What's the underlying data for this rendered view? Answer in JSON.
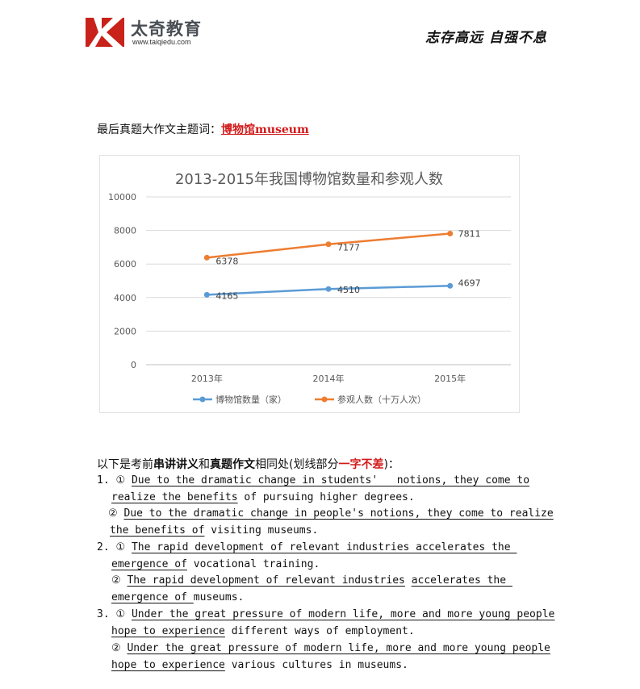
{
  "header": {
    "brand": "太奇教育",
    "url": "www.taiqiedu.com",
    "slogan": "志存高远 自强不息"
  },
  "topic": {
    "label": "最后真题大作文主题词：",
    "keyword": "博物馆museum"
  },
  "chart_data": {
    "type": "line",
    "title": "2013-2015年我国博物馆数量和参观人数",
    "categories": [
      "2013年",
      "2014年",
      "2015年"
    ],
    "ylim": [
      0,
      10000
    ],
    "yticks": [
      "0",
      "2000",
      "4000",
      "6000",
      "8000",
      "10000"
    ],
    "grid": true,
    "legend_position": "bottom",
    "series": [
      {
        "name": "博物馆数量（家）",
        "values": [
          4165,
          4510,
          4697
        ],
        "color": "#5B9BD5"
      },
      {
        "name": "参观人数（十万人次）",
        "values": [
          6378,
          7177,
          7811
        ],
        "color": "#ED7D31"
      }
    ]
  },
  "intro": {
    "p1": "以下是考前",
    "b1": "串讲讲义",
    "p2": "和",
    "b2": "真题作文",
    "p3": "相同处(划线部分",
    "red": "一字不差",
    "p4": ")："
  },
  "lines": [
    {
      "x": 120,
      "segs": [
        {
          "t": "1. ① ",
          "u": false
        },
        {
          "t": "Due to the dramatic change in students'   notions, they come to",
          "u": true
        }
      ]
    },
    {
      "x": 138,
      "segs": [
        {
          "t": "realize the benefits",
          "u": true
        },
        {
          "t": " of pursuing higher degrees.",
          "u": false
        }
      ]
    },
    {
      "x": 134,
      "segs": [
        {
          "t": "② ",
          "u": false
        },
        {
          "t": "Due to the dramatic change in people's notions, they come to realize",
          "u": true
        }
      ]
    },
    {
      "x": 136,
      "segs": [
        {
          "t": "the benefits of",
          "u": true
        },
        {
          "t": " visiting museums.",
          "u": false
        }
      ]
    },
    {
      "x": 120,
      "segs": [
        {
          "t": "2. ① ",
          "u": false
        },
        {
          "t": "The rapid development of relevant industries accelerates the ",
          "u": true
        }
      ]
    },
    {
      "x": 138,
      "segs": [
        {
          "t": "emergence of",
          "u": true
        },
        {
          "t": " vocational training.",
          "u": false
        }
      ]
    },
    {
      "x": 138,
      "segs": [
        {
          "t": "② ",
          "u": false
        },
        {
          "t": "The rapid development of relevant industries",
          "u": true
        },
        {
          "t": " ",
          "u": false
        },
        {
          "t": "accelerates the ",
          "u": true
        }
      ]
    },
    {
      "x": 138,
      "segs": [
        {
          "t": "emergence of ",
          "u": true
        },
        {
          "t": "museums.",
          "u": false
        }
      ]
    },
    {
      "x": 120,
      "segs": [
        {
          "t": "3. ① ",
          "u": false
        },
        {
          "t": "Under the great pressure of modern life, more and more young people",
          "u": true
        }
      ]
    },
    {
      "x": 138,
      "segs": [
        {
          "t": "hope to experience",
          "u": true
        },
        {
          "t": " different ways of employment.",
          "u": false
        }
      ]
    },
    {
      "x": 138,
      "segs": [
        {
          "t": "② ",
          "u": false
        },
        {
          "t": "Under the great pressure of modern life, more and more young people",
          "u": true
        }
      ]
    },
    {
      "x": 138,
      "segs": [
        {
          "t": "hope to experience",
          "u": true
        },
        {
          "t": " various cultures in museums.",
          "u": false
        }
      ]
    }
  ]
}
